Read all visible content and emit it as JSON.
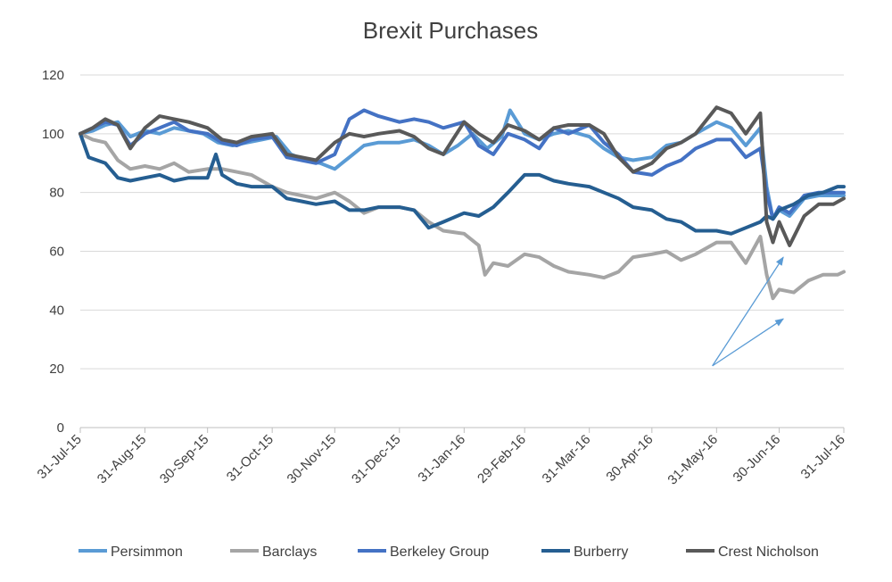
{
  "chart_data": {
    "type": "line",
    "title": "Brexit Purchases",
    "xlabel": "",
    "ylabel": "",
    "ylim": [
      0,
      120
    ],
    "yticks": [
      0,
      20,
      40,
      60,
      80,
      100,
      120
    ],
    "grid": true,
    "legend_position": "bottom",
    "x_labels": [
      "31-Jul-15",
      "31-Aug-15",
      "30-Sep-15",
      "31-Oct-15",
      "30-Nov-15",
      "31-Dec-15",
      "31-Jan-16",
      "29-Feb-16",
      "31-Mar-16",
      "30-Apr-16",
      "31-May-16",
      "30-Jun-16",
      "31-Jul-16"
    ],
    "x_label_dates": [
      "2015-07-31",
      "2015-08-31",
      "2015-09-30",
      "2015-10-31",
      "2015-11-30",
      "2015-12-31",
      "2016-01-31",
      "2016-02-29",
      "2016-03-31",
      "2016-04-30",
      "2016-05-31",
      "2016-06-30",
      "2016-07-31"
    ],
    "series": [
      {
        "name": "Persimmon",
        "color": "#5a9bd5",
        "points": [
          [
            "2015-07-31",
            100
          ],
          [
            "2015-08-06",
            101
          ],
          [
            "2015-08-12",
            103
          ],
          [
            "2015-08-18",
            104
          ],
          [
            "2015-08-24",
            99
          ],
          [
            "2015-08-31",
            101
          ],
          [
            "2015-09-07",
            100
          ],
          [
            "2015-09-14",
            102
          ],
          [
            "2015-09-21",
            101
          ],
          [
            "2015-09-28",
            100
          ],
          [
            "2015-10-05",
            97
          ],
          [
            "2015-10-12",
            96
          ],
          [
            "2015-10-19",
            97
          ],
          [
            "2015-10-26",
            98
          ],
          [
            "2015-11-02",
            99
          ],
          [
            "2015-11-09",
            93
          ],
          [
            "2015-11-16",
            91
          ],
          [
            "2015-11-23",
            90
          ],
          [
            "2015-11-30",
            88
          ],
          [
            "2015-12-07",
            92
          ],
          [
            "2015-12-14",
            96
          ],
          [
            "2015-12-21",
            97
          ],
          [
            "2015-12-31",
            97
          ],
          [
            "2016-01-07",
            98
          ],
          [
            "2016-01-14",
            96
          ],
          [
            "2016-01-21",
            93
          ],
          [
            "2016-01-28",
            96
          ],
          [
            "2016-02-04",
            100
          ],
          [
            "2016-02-11",
            95
          ],
          [
            "2016-02-18",
            99
          ],
          [
            "2016-02-22",
            108
          ],
          [
            "2016-02-29",
            100
          ],
          [
            "2016-03-07",
            98
          ],
          [
            "2016-03-14",
            100
          ],
          [
            "2016-03-21",
            101
          ],
          [
            "2016-03-31",
            99
          ],
          [
            "2016-04-07",
            95
          ],
          [
            "2016-04-14",
            92
          ],
          [
            "2016-04-21",
            91
          ],
          [
            "2016-04-30",
            92
          ],
          [
            "2016-05-07",
            96
          ],
          [
            "2016-05-14",
            97
          ],
          [
            "2016-05-21",
            100
          ],
          [
            "2016-05-31",
            104
          ],
          [
            "2016-06-07",
            102
          ],
          [
            "2016-06-14",
            96
          ],
          [
            "2016-06-21",
            102
          ],
          [
            "2016-06-24",
            82
          ],
          [
            "2016-06-27",
            71
          ],
          [
            "2016-06-30",
            74
          ],
          [
            "2016-07-05",
            72
          ],
          [
            "2016-07-12",
            78
          ],
          [
            "2016-07-19",
            79
          ],
          [
            "2016-07-26",
            79
          ],
          [
            "2016-07-31",
            79
          ]
        ]
      },
      {
        "name": "Barclays",
        "color": "#a5a5a5",
        "points": [
          [
            "2015-07-31",
            100
          ],
          [
            "2015-08-06",
            98
          ],
          [
            "2015-08-12",
            97
          ],
          [
            "2015-08-18",
            91
          ],
          [
            "2015-08-24",
            88
          ],
          [
            "2015-08-31",
            89
          ],
          [
            "2015-09-07",
            88
          ],
          [
            "2015-09-14",
            90
          ],
          [
            "2015-09-21",
            87
          ],
          [
            "2015-09-30",
            88
          ],
          [
            "2015-10-07",
            88
          ],
          [
            "2015-10-14",
            87
          ],
          [
            "2015-10-21",
            86
          ],
          [
            "2015-10-31",
            82
          ],
          [
            "2015-11-07",
            80
          ],
          [
            "2015-11-14",
            79
          ],
          [
            "2015-11-21",
            78
          ],
          [
            "2015-11-30",
            80
          ],
          [
            "2015-12-07",
            77
          ],
          [
            "2015-12-14",
            73
          ],
          [
            "2015-12-21",
            75
          ],
          [
            "2015-12-31",
            75
          ],
          [
            "2016-01-07",
            74
          ],
          [
            "2016-01-14",
            70
          ],
          [
            "2016-01-21",
            67
          ],
          [
            "2016-01-31",
            66
          ],
          [
            "2016-02-07",
            62
          ],
          [
            "2016-02-10",
            52
          ],
          [
            "2016-02-14",
            56
          ],
          [
            "2016-02-21",
            55
          ],
          [
            "2016-02-29",
            59
          ],
          [
            "2016-03-07",
            58
          ],
          [
            "2016-03-14",
            55
          ],
          [
            "2016-03-21",
            53
          ],
          [
            "2016-03-31",
            52
          ],
          [
            "2016-04-07",
            51
          ],
          [
            "2016-04-14",
            53
          ],
          [
            "2016-04-21",
            58
          ],
          [
            "2016-04-30",
            59
          ],
          [
            "2016-05-07",
            60
          ],
          [
            "2016-05-14",
            57
          ],
          [
            "2016-05-21",
            59
          ],
          [
            "2016-05-31",
            63
          ],
          [
            "2016-06-07",
            63
          ],
          [
            "2016-06-14",
            56
          ],
          [
            "2016-06-21",
            65
          ],
          [
            "2016-06-24",
            52
          ],
          [
            "2016-06-27",
            44
          ],
          [
            "2016-06-30",
            47
          ],
          [
            "2016-07-07",
            46
          ],
          [
            "2016-07-14",
            50
          ],
          [
            "2016-07-21",
            52
          ],
          [
            "2016-07-28",
            52
          ],
          [
            "2016-07-31",
            53
          ]
        ]
      },
      {
        "name": "Berkeley  Group",
        "color": "#4472c4",
        "points": [
          [
            "2015-07-31",
            100
          ],
          [
            "2015-08-06",
            102
          ],
          [
            "2015-08-12",
            104
          ],
          [
            "2015-08-18",
            103
          ],
          [
            "2015-08-24",
            96
          ],
          [
            "2015-08-31",
            100
          ],
          [
            "2015-09-07",
            102
          ],
          [
            "2015-09-14",
            104
          ],
          [
            "2015-09-21",
            101
          ],
          [
            "2015-09-30",
            100
          ],
          [
            "2015-10-07",
            97
          ],
          [
            "2015-10-14",
            96
          ],
          [
            "2015-10-21",
            98
          ],
          [
            "2015-10-31",
            99
          ],
          [
            "2015-11-07",
            92
          ],
          [
            "2015-11-14",
            91
          ],
          [
            "2015-11-21",
            90
          ],
          [
            "2015-11-30",
            93
          ],
          [
            "2015-12-07",
            105
          ],
          [
            "2015-12-14",
            108
          ],
          [
            "2015-12-21",
            106
          ],
          [
            "2015-12-31",
            104
          ],
          [
            "2016-01-07",
            105
          ],
          [
            "2016-01-14",
            104
          ],
          [
            "2016-01-21",
            102
          ],
          [
            "2016-01-31",
            104
          ],
          [
            "2016-02-07",
            96
          ],
          [
            "2016-02-14",
            93
          ],
          [
            "2016-02-21",
            100
          ],
          [
            "2016-02-29",
            98
          ],
          [
            "2016-03-07",
            95
          ],
          [
            "2016-03-14",
            102
          ],
          [
            "2016-03-21",
            100
          ],
          [
            "2016-03-31",
            103
          ],
          [
            "2016-04-07",
            97
          ],
          [
            "2016-04-14",
            93
          ],
          [
            "2016-04-21",
            87
          ],
          [
            "2016-04-30",
            86
          ],
          [
            "2016-05-07",
            89
          ],
          [
            "2016-05-14",
            91
          ],
          [
            "2016-05-21",
            95
          ],
          [
            "2016-05-31",
            98
          ],
          [
            "2016-06-07",
            98
          ],
          [
            "2016-06-14",
            92
          ],
          [
            "2016-06-21",
            95
          ],
          [
            "2016-06-24",
            80
          ],
          [
            "2016-06-27",
            71
          ],
          [
            "2016-06-30",
            75
          ],
          [
            "2016-07-05",
            73
          ],
          [
            "2016-07-12",
            79
          ],
          [
            "2016-07-19",
            80
          ],
          [
            "2016-07-26",
            80
          ],
          [
            "2016-07-31",
            80
          ]
        ]
      },
      {
        "name": "Burberry",
        "color": "#255e91",
        "points": [
          [
            "2015-07-31",
            100
          ],
          [
            "2015-08-04",
            92
          ],
          [
            "2015-08-12",
            90
          ],
          [
            "2015-08-18",
            85
          ],
          [
            "2015-08-24",
            84
          ],
          [
            "2015-08-31",
            85
          ],
          [
            "2015-09-07",
            86
          ],
          [
            "2015-09-14",
            84
          ],
          [
            "2015-09-21",
            85
          ],
          [
            "2015-09-30",
            85
          ],
          [
            "2015-10-04",
            93
          ],
          [
            "2015-10-07",
            86
          ],
          [
            "2015-10-14",
            83
          ],
          [
            "2015-10-21",
            82
          ],
          [
            "2015-10-31",
            82
          ],
          [
            "2015-11-07",
            78
          ],
          [
            "2015-11-14",
            77
          ],
          [
            "2015-11-21",
            76
          ],
          [
            "2015-11-30",
            77
          ],
          [
            "2015-12-07",
            74
          ],
          [
            "2015-12-14",
            74
          ],
          [
            "2015-12-21",
            75
          ],
          [
            "2015-12-31",
            75
          ],
          [
            "2016-01-07",
            74
          ],
          [
            "2016-01-14",
            68
          ],
          [
            "2016-01-21",
            70
          ],
          [
            "2016-01-31",
            73
          ],
          [
            "2016-02-07",
            72
          ],
          [
            "2016-02-14",
            75
          ],
          [
            "2016-02-21",
            80
          ],
          [
            "2016-02-29",
            86
          ],
          [
            "2016-03-07",
            86
          ],
          [
            "2016-03-14",
            84
          ],
          [
            "2016-03-21",
            83
          ],
          [
            "2016-03-31",
            82
          ],
          [
            "2016-04-07",
            80
          ],
          [
            "2016-04-14",
            78
          ],
          [
            "2016-04-21",
            75
          ],
          [
            "2016-04-30",
            74
          ],
          [
            "2016-05-07",
            71
          ],
          [
            "2016-05-14",
            70
          ],
          [
            "2016-05-21",
            67
          ],
          [
            "2016-05-31",
            67
          ],
          [
            "2016-06-07",
            66
          ],
          [
            "2016-06-14",
            68
          ],
          [
            "2016-06-21",
            70
          ],
          [
            "2016-06-24",
            72
          ],
          [
            "2016-06-27",
            71
          ],
          [
            "2016-06-30",
            74
          ],
          [
            "2016-07-07",
            76
          ],
          [
            "2016-07-14",
            79
          ],
          [
            "2016-07-21",
            80
          ],
          [
            "2016-07-28",
            82
          ],
          [
            "2016-07-31",
            82
          ]
        ]
      },
      {
        "name": "Crest  Nicholson",
        "color": "#595959",
        "points": [
          [
            "2015-07-31",
            100
          ],
          [
            "2015-08-06",
            102
          ],
          [
            "2015-08-12",
            105
          ],
          [
            "2015-08-18",
            103
          ],
          [
            "2015-08-24",
            95
          ],
          [
            "2015-08-31",
            102
          ],
          [
            "2015-09-07",
            106
          ],
          [
            "2015-09-14",
            105
          ],
          [
            "2015-09-21",
            104
          ],
          [
            "2015-09-30",
            102
          ],
          [
            "2015-10-07",
            98
          ],
          [
            "2015-10-14",
            97
          ],
          [
            "2015-10-21",
            99
          ],
          [
            "2015-10-31",
            100
          ],
          [
            "2015-11-07",
            93
          ],
          [
            "2015-11-14",
            92
          ],
          [
            "2015-11-21",
            91
          ],
          [
            "2015-11-30",
            97
          ],
          [
            "2015-12-07",
            100
          ],
          [
            "2015-12-14",
            99
          ],
          [
            "2015-12-21",
            100
          ],
          [
            "2015-12-31",
            101
          ],
          [
            "2016-01-07",
            99
          ],
          [
            "2016-01-14",
            95
          ],
          [
            "2016-01-21",
            93
          ],
          [
            "2016-01-31",
            104
          ],
          [
            "2016-02-07",
            100
          ],
          [
            "2016-02-14",
            97
          ],
          [
            "2016-02-21",
            103
          ],
          [
            "2016-02-29",
            101
          ],
          [
            "2016-03-07",
            98
          ],
          [
            "2016-03-14",
            102
          ],
          [
            "2016-03-21",
            103
          ],
          [
            "2016-03-31",
            103
          ],
          [
            "2016-04-07",
            100
          ],
          [
            "2016-04-14",
            92
          ],
          [
            "2016-04-21",
            87
          ],
          [
            "2016-04-30",
            90
          ],
          [
            "2016-05-07",
            95
          ],
          [
            "2016-05-14",
            97
          ],
          [
            "2016-05-21",
            100
          ],
          [
            "2016-05-31",
            109
          ],
          [
            "2016-06-07",
            107
          ],
          [
            "2016-06-14",
            100
          ],
          [
            "2016-06-21",
            107
          ],
          [
            "2016-06-24",
            70
          ],
          [
            "2016-06-27",
            63
          ],
          [
            "2016-06-30",
            70
          ],
          [
            "2016-07-05",
            62
          ],
          [
            "2016-07-12",
            72
          ],
          [
            "2016-07-19",
            76
          ],
          [
            "2016-07-26",
            76
          ],
          [
            "2016-07-31",
            78
          ]
        ]
      }
    ],
    "annotations": [
      {
        "type": "arrow",
        "from": [
          "2016-05-29",
          21
        ],
        "to": [
          "2016-07-02",
          58
        ],
        "color": "#5a9bd5"
      },
      {
        "type": "arrow",
        "from": [
          "2016-05-29",
          21
        ],
        "to": [
          "2016-07-02",
          37
        ],
        "color": "#5a9bd5"
      }
    ]
  }
}
